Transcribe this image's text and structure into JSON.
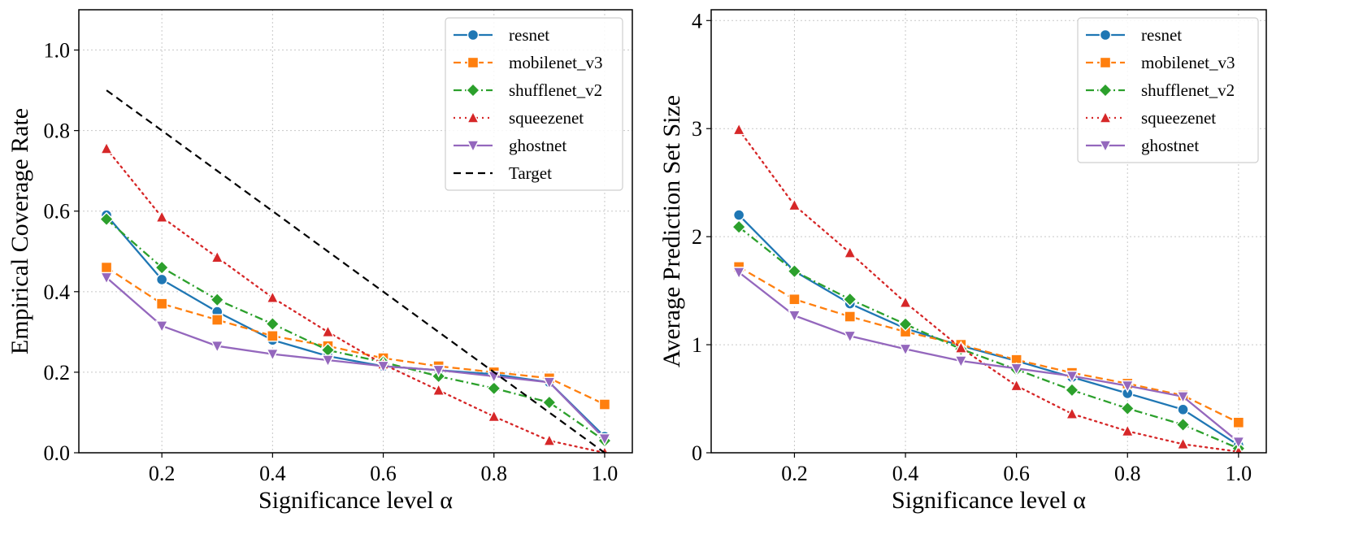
{
  "chart_data": [
    {
      "type": "line",
      "xlabel": "Significance level α",
      "ylabel": "Empirical Coverage Rate",
      "xlim": [
        0.05,
        1.05
      ],
      "ylim": [
        0.0,
        1.1
      ],
      "xticks": [
        "0.2",
        "0.4",
        "0.6",
        "0.8",
        "1.0"
      ],
      "yticks": [
        "0.0",
        "0.2",
        "0.4",
        "0.6",
        "0.8",
        "1.0"
      ],
      "grid": true,
      "legend_position": "top-right",
      "x": [
        0.1,
        0.2,
        0.3,
        0.4,
        0.5,
        0.6,
        0.7,
        0.8,
        0.9,
        1.0
      ],
      "series": [
        {
          "name": "resnet",
          "color": "#1f77b4",
          "marker": "circle",
          "dash": "solid",
          "values": [
            0.59,
            0.43,
            0.35,
            0.28,
            0.24,
            0.215,
            0.205,
            0.195,
            0.175,
            0.04
          ]
        },
        {
          "name": "mobilenet_v3",
          "color": "#ff7f0e",
          "marker": "square",
          "dash": "dashed",
          "values": [
            0.46,
            0.37,
            0.33,
            0.29,
            0.265,
            0.235,
            0.215,
            0.2,
            0.185,
            0.12
          ]
        },
        {
          "name": "shufflenet_v2",
          "color": "#2ca02c",
          "marker": "diamond",
          "dash": "dashdot",
          "values": [
            0.58,
            0.46,
            0.38,
            0.32,
            0.255,
            0.225,
            0.19,
            0.16,
            0.125,
            0.03
          ]
        },
        {
          "name": "squeezenet",
          "color": "#d62728",
          "marker": "triangle-up",
          "dash": "dotted",
          "values": [
            0.755,
            0.585,
            0.485,
            0.385,
            0.3,
            0.22,
            0.155,
            0.09,
            0.03,
            0.0
          ]
        },
        {
          "name": "ghostnet",
          "color": "#9467bd",
          "marker": "triangle-down",
          "dash": "solid",
          "values": [
            0.435,
            0.315,
            0.265,
            0.245,
            0.23,
            0.215,
            0.205,
            0.19,
            0.175,
            0.035
          ]
        },
        {
          "name": "Target",
          "color": "#000000",
          "marker": "none",
          "dash": "longdash",
          "values": [
            0.9,
            0.8,
            0.7,
            0.6,
            0.5,
            0.4,
            0.3,
            0.2,
            0.1,
            0.0
          ]
        }
      ]
    },
    {
      "type": "line",
      "xlabel": "Significance level α",
      "ylabel": "Average Prediction Set Size",
      "xlim": [
        0.05,
        1.05
      ],
      "ylim": [
        0.0,
        4.1
      ],
      "xticks": [
        "0.2",
        "0.4",
        "0.6",
        "0.8",
        "1.0"
      ],
      "yticks": [
        "0",
        "1",
        "2",
        "3",
        "4"
      ],
      "grid": true,
      "legend_position": "top-right",
      "x": [
        0.1,
        0.2,
        0.3,
        0.4,
        0.5,
        0.6,
        0.7,
        0.8,
        0.9,
        1.0
      ],
      "series": [
        {
          "name": "resnet",
          "color": "#1f77b4",
          "marker": "circle",
          "dash": "solid",
          "values": [
            2.2,
            1.68,
            1.38,
            1.15,
            0.99,
            0.85,
            0.7,
            0.55,
            0.4,
            0.07
          ]
        },
        {
          "name": "mobilenet_v3",
          "color": "#ff7f0e",
          "marker": "square",
          "dash": "dashed",
          "values": [
            1.72,
            1.42,
            1.26,
            1.12,
            1.0,
            0.86,
            0.74,
            0.64,
            0.53,
            0.28
          ]
        },
        {
          "name": "shufflenet_v2",
          "color": "#2ca02c",
          "marker": "diamond",
          "dash": "dashdot",
          "values": [
            2.09,
            1.68,
            1.42,
            1.19,
            0.96,
            0.77,
            0.58,
            0.41,
            0.26,
            0.04
          ]
        },
        {
          "name": "squeezenet",
          "color": "#d62728",
          "marker": "triangle-up",
          "dash": "dotted",
          "values": [
            2.99,
            2.29,
            1.85,
            1.39,
            0.97,
            0.62,
            0.36,
            0.2,
            0.08,
            0.01
          ]
        },
        {
          "name": "ghostnet",
          "color": "#9467bd",
          "marker": "triangle-down",
          "dash": "solid",
          "values": [
            1.67,
            1.27,
            1.08,
            0.96,
            0.85,
            0.78,
            0.71,
            0.62,
            0.52,
            0.1
          ]
        }
      ]
    }
  ]
}
